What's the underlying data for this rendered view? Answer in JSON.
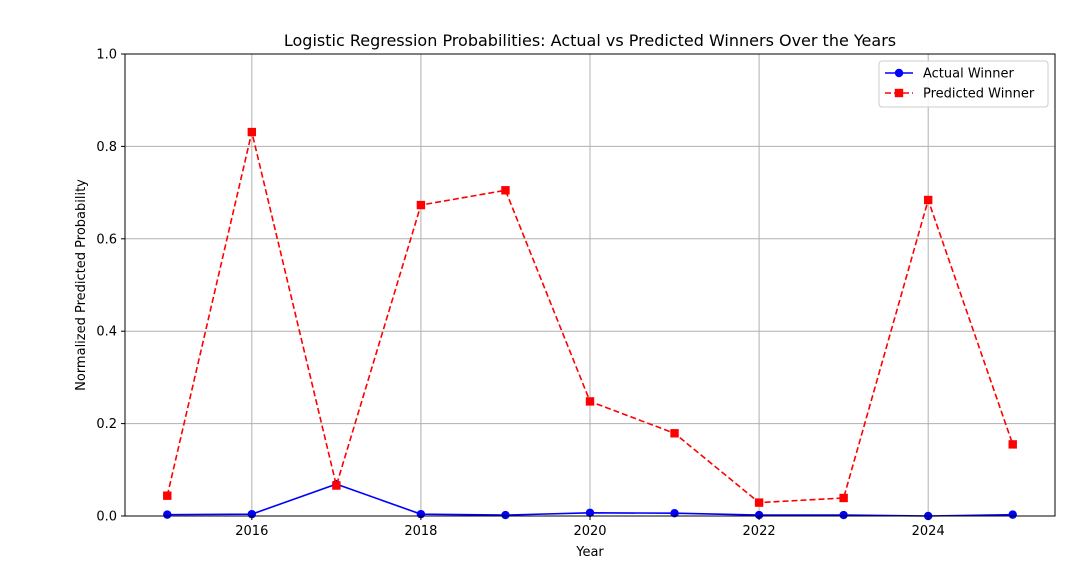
{
  "chart_data": {
    "type": "line",
    "title": "Logistic Regression Probabilities: Actual vs Predicted Winners Over the Years",
    "xlabel": "Year",
    "ylabel": "Normalized Predicted Probability",
    "x": [
      2015,
      2016,
      2017,
      2018,
      2019,
      2020,
      2021,
      2022,
      2023,
      2024,
      2025
    ],
    "xlim": [
      2014.5,
      2025.5
    ],
    "ylim": [
      0,
      1
    ],
    "x_ticks": [
      2016,
      2018,
      2020,
      2022,
      2024
    ],
    "y_ticks": [
      0.0,
      0.2,
      0.4,
      0.6,
      0.8,
      1.0
    ],
    "x_tick_labels": [
      "2016",
      "2018",
      "2020",
      "2022",
      "2024"
    ],
    "y_tick_labels": [
      "0.0",
      "0.2",
      "0.4",
      "0.6",
      "0.8",
      "1.0"
    ],
    "grid": true,
    "legend_position": "top-right",
    "series": [
      {
        "name": "Actual Winner",
        "values": [
          0.003,
          0.004,
          0.069,
          0.004,
          0.002,
          0.007,
          0.006,
          0.002,
          0.002,
          0.0,
          0.003
        ],
        "color": "#0000ff",
        "line_style": "solid",
        "marker": "circle"
      },
      {
        "name": "Predicted Winner",
        "values": [
          0.044,
          0.831,
          0.066,
          0.673,
          0.705,
          0.248,
          0.179,
          0.029,
          0.039,
          0.684,
          0.155
        ],
        "color": "#ff0000",
        "line_style": "dashed",
        "marker": "square"
      }
    ]
  }
}
